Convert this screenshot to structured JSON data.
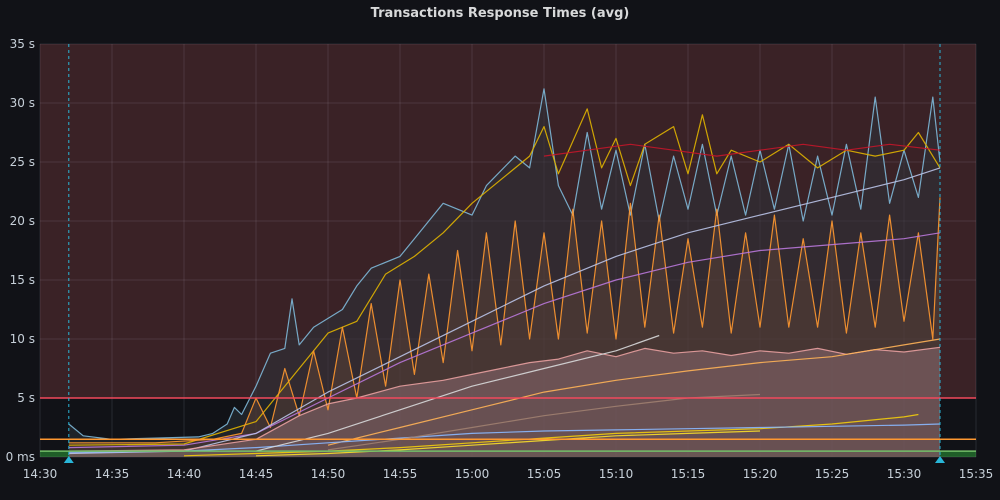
{
  "panel": {
    "title": "Transactions Response Times (avg)"
  },
  "chart_data": {
    "type": "line",
    "title": "Transactions Response Times (avg)",
    "xlabel": "",
    "ylabel": "",
    "ylim": [
      0,
      35
    ],
    "xlim": [
      "14:30",
      "15:35"
    ],
    "y_ticks": [
      "0 ms",
      "5 s",
      "10 s",
      "15 s",
      "20 s",
      "25 s",
      "30 s",
      "35 s"
    ],
    "x_ticks": [
      "14:30",
      "14:35",
      "14:40",
      "14:45",
      "14:50",
      "14:55",
      "15:00",
      "15:05",
      "15:10",
      "15:15",
      "15:20",
      "15:25",
      "15:30",
      "15:35"
    ],
    "grid": true,
    "legend": "none",
    "thresholds": [
      {
        "value": 5,
        "color": "#f2495c",
        "region": "above",
        "region_color": "#3a2226"
      },
      {
        "value": 1.5,
        "color": "#ff9830"
      },
      {
        "value": 0.5,
        "color": "#73bf69",
        "region": "below",
        "region_color": "#1f5e28"
      }
    ],
    "annotations": [
      {
        "time": "14:32",
        "color": "#29b6d8"
      },
      {
        "time": "15:32.5",
        "color": "#29b6d8"
      }
    ],
    "series": [
      {
        "color": "#7eb8d8",
        "fill": "#2c3238",
        "points": [
          [
            "14:32",
            2.8
          ],
          [
            "14:33",
            1.8
          ],
          [
            "14:35",
            1.5
          ],
          [
            "14:38",
            1.6
          ],
          [
            "14:41",
            1.7
          ],
          [
            "14:42",
            2.0
          ],
          [
            "14:43",
            2.8
          ],
          [
            "14:43.5",
            4.2
          ],
          [
            "14:44",
            3.6
          ],
          [
            "14:45",
            6.0
          ],
          [
            "14:46",
            8.8
          ],
          [
            "14:47",
            9.2
          ],
          [
            "14:47.5",
            13.4
          ],
          [
            "14:48",
            9.5
          ],
          [
            "14:49",
            11.0
          ],
          [
            "14:51",
            12.5
          ],
          [
            "14:52",
            14.5
          ],
          [
            "14:53",
            16.0
          ],
          [
            "14:55",
            17.0
          ],
          [
            "14:56",
            18.5
          ],
          [
            "14:58",
            21.5
          ],
          [
            "15:00",
            20.5
          ],
          [
            "15:01",
            23.0
          ],
          [
            "15:03",
            25.5
          ],
          [
            "15:04",
            24.5
          ],
          [
            "15:05",
            31.2
          ],
          [
            "15:06",
            23.0
          ],
          [
            "15:07",
            20.5
          ],
          [
            "15:08",
            27.5
          ],
          [
            "15:09",
            21.0
          ],
          [
            "15:10",
            26.0
          ],
          [
            "15:11",
            20.5
          ],
          [
            "15:12",
            26.5
          ],
          [
            "15:13",
            20.0
          ],
          [
            "15:14",
            25.5
          ],
          [
            "15:15",
            21.0
          ],
          [
            "15:16",
            26.5
          ],
          [
            "15:17",
            20.5
          ],
          [
            "15:18",
            25.5
          ],
          [
            "15:19",
            20.5
          ],
          [
            "15:20",
            26.0
          ],
          [
            "15:21",
            21.0
          ],
          [
            "15:22",
            26.5
          ],
          [
            "15:23",
            20.0
          ],
          [
            "15:24",
            25.5
          ],
          [
            "15:25",
            20.5
          ],
          [
            "15:26",
            26.5
          ],
          [
            "15:27",
            21.0
          ],
          [
            "15:28",
            30.5
          ],
          [
            "15:29",
            21.5
          ],
          [
            "15:30",
            26.0
          ],
          [
            "15:31",
            22.0
          ],
          [
            "15:32",
            30.5
          ],
          [
            "15:32.5",
            25.0
          ]
        ]
      },
      {
        "color": "#e0b400",
        "points": [
          [
            "14:32",
            1.0
          ],
          [
            "14:40",
            1.1
          ],
          [
            "14:45",
            3.0
          ],
          [
            "14:48",
            7.5
          ],
          [
            "14:50",
            10.5
          ],
          [
            "14:52",
            11.5
          ],
          [
            "14:54",
            15.5
          ],
          [
            "14:56",
            17.0
          ],
          [
            "14:58",
            19.0
          ],
          [
            "15:00",
            21.5
          ],
          [
            "15:02",
            23.5
          ],
          [
            "15:04",
            25.5
          ],
          [
            "15:05",
            28.0
          ],
          [
            "15:06",
            24.0
          ],
          [
            "15:08",
            29.5
          ],
          [
            "15:09",
            24.5
          ],
          [
            "15:10",
            27.0
          ],
          [
            "15:11",
            23.0
          ],
          [
            "15:12",
            26.5
          ],
          [
            "15:14",
            28.0
          ],
          [
            "15:15",
            24.0
          ],
          [
            "15:16",
            29.0
          ],
          [
            "15:17",
            24.0
          ],
          [
            "15:18",
            26.0
          ],
          [
            "15:20",
            25.0
          ],
          [
            "15:22",
            26.5
          ],
          [
            "15:24",
            24.5
          ],
          [
            "15:26",
            26.0
          ],
          [
            "15:28",
            25.5
          ],
          [
            "15:30",
            26.0
          ],
          [
            "15:31",
            27.5
          ],
          [
            "15:32.5",
            24.5
          ]
        ]
      },
      {
        "color": "#c4162a",
        "points": [
          [
            "15:05",
            25.5
          ],
          [
            "15:08",
            26.0
          ],
          [
            "15:11",
            26.5
          ],
          [
            "15:14",
            26.0
          ],
          [
            "15:17",
            25.5
          ],
          [
            "15:20",
            26.0
          ],
          [
            "15:23",
            26.5
          ],
          [
            "15:26",
            26.0
          ],
          [
            "15:29",
            26.5
          ],
          [
            "15:32.5",
            26.0
          ]
        ]
      },
      {
        "color": "#ff9830",
        "fill": "#5a4036",
        "points": [
          [
            "14:32",
            1.2
          ],
          [
            "14:38",
            1.2
          ],
          [
            "14:42",
            1.5
          ],
          [
            "14:44",
            2.0
          ],
          [
            "14:45",
            5.0
          ],
          [
            "14:46",
            2.5
          ],
          [
            "14:47",
            7.5
          ],
          [
            "14:48",
            3.5
          ],
          [
            "14:49",
            9.0
          ],
          [
            "14:50",
            4.0
          ],
          [
            "14:51",
            11.0
          ],
          [
            "14:52",
            5.0
          ],
          [
            "14:53",
            13.0
          ],
          [
            "14:54",
            6.0
          ],
          [
            "14:55",
            15.0
          ],
          [
            "14:56",
            7.0
          ],
          [
            "14:57",
            15.5
          ],
          [
            "14:58",
            8.0
          ],
          [
            "14:59",
            17.5
          ],
          [
            "15:00",
            9.0
          ],
          [
            "15:01",
            19.0
          ],
          [
            "15:02",
            9.5
          ],
          [
            "15:03",
            20.0
          ],
          [
            "15:04",
            10.0
          ],
          [
            "15:05",
            19.0
          ],
          [
            "15:06",
            10.0
          ],
          [
            "15:07",
            21.0
          ],
          [
            "15:08",
            10.5
          ],
          [
            "15:09",
            20.0
          ],
          [
            "15:10",
            10.0
          ],
          [
            "15:11",
            21.5
          ],
          [
            "15:12",
            11.0
          ],
          [
            "15:13",
            20.5
          ],
          [
            "15:14",
            10.5
          ],
          [
            "15:15",
            18.5
          ],
          [
            "15:16",
            11.0
          ],
          [
            "15:17",
            21.0
          ],
          [
            "15:18",
            10.5
          ],
          [
            "15:19",
            19.0
          ],
          [
            "15:20",
            11.0
          ],
          [
            "15:21",
            20.5
          ],
          [
            "15:22",
            11.0
          ],
          [
            "15:23",
            18.5
          ],
          [
            "15:24",
            11.0
          ],
          [
            "15:25",
            20.0
          ],
          [
            "15:26",
            10.5
          ],
          [
            "15:27",
            19.0
          ],
          [
            "15:28",
            11.0
          ],
          [
            "15:29",
            20.5
          ],
          [
            "15:30",
            11.5
          ],
          [
            "15:31",
            19.0
          ],
          [
            "15:32",
            10.0
          ],
          [
            "15:32.5",
            22.0
          ]
        ]
      },
      {
        "color": "#b877d9",
        "points": [
          [
            "14:32",
            0.8
          ],
          [
            "14:40",
            1.0
          ],
          [
            "14:45",
            2.0
          ],
          [
            "14:50",
            5.0
          ],
          [
            "14:55",
            8.0
          ],
          [
            "15:00",
            10.5
          ],
          [
            "15:05",
            13.0
          ],
          [
            "15:10",
            15.0
          ],
          [
            "15:15",
            16.5
          ],
          [
            "15:20",
            17.5
          ],
          [
            "15:25",
            18.0
          ],
          [
            "15:30",
            18.5
          ],
          [
            "15:32.5",
            19.0
          ]
        ]
      },
      {
        "color": "#b9c3e8",
        "points": [
          [
            "14:32",
            0.3
          ],
          [
            "14:40",
            0.5
          ],
          [
            "14:45",
            2.0
          ],
          [
            "14:50",
            5.5
          ],
          [
            "14:55",
            8.5
          ],
          [
            "15:00",
            11.5
          ],
          [
            "15:05",
            14.5
          ],
          [
            "15:10",
            17.0
          ],
          [
            "15:15",
            19.0
          ],
          [
            "15:20",
            20.5
          ],
          [
            "15:25",
            22.0
          ],
          [
            "15:30",
            23.5
          ],
          [
            "15:32.5",
            24.5
          ]
        ]
      },
      {
        "color": "#e8a0a0",
        "fill": "#8a6a70",
        "points": [
          [
            "14:32",
            0.5
          ],
          [
            "14:40",
            0.6
          ],
          [
            "14:45",
            1.5
          ],
          [
            "14:48",
            3.5
          ],
          [
            "14:50",
            4.5
          ],
          [
            "14:52",
            5.0
          ],
          [
            "14:55",
            6.0
          ],
          [
            "14:58",
            6.5
          ],
          [
            "15:00",
            7.0
          ],
          [
            "15:02",
            7.5
          ],
          [
            "15:04",
            8.0
          ],
          [
            "15:06",
            8.3
          ],
          [
            "15:08",
            9.0
          ],
          [
            "15:10",
            8.5
          ],
          [
            "15:12",
            9.2
          ],
          [
            "15:14",
            8.8
          ],
          [
            "15:16",
            9.0
          ],
          [
            "15:18",
            8.6
          ],
          [
            "15:20",
            9.0
          ],
          [
            "15:22",
            8.8
          ],
          [
            "15:24",
            9.2
          ],
          [
            "15:26",
            8.7
          ],
          [
            "15:28",
            9.1
          ],
          [
            "15:30",
            8.9
          ],
          [
            "15:32.5",
            9.3
          ]
        ]
      },
      {
        "color": "#ffb357",
        "points": [
          [
            "14:50",
            1.0
          ],
          [
            "14:55",
            2.5
          ],
          [
            "15:00",
            4.0
          ],
          [
            "15:05",
            5.5
          ],
          [
            "15:10",
            6.5
          ],
          [
            "15:15",
            7.3
          ],
          [
            "15:20",
            8.0
          ],
          [
            "15:25",
            8.5
          ],
          [
            "15:30",
            9.5
          ],
          [
            "15:32.5",
            10.0
          ]
        ]
      },
      {
        "color": "#f2cc0c",
        "points": [
          [
            "14:40",
            0.1
          ],
          [
            "14:45",
            0.3
          ],
          [
            "14:50",
            0.5
          ],
          [
            "14:55",
            0.8
          ],
          [
            "15:00",
            1.2
          ],
          [
            "15:05",
            1.6
          ],
          [
            "15:10",
            2.0
          ],
          [
            "15:15",
            2.2
          ],
          [
            "15:20",
            2.4
          ],
          [
            "15:25",
            2.8
          ],
          [
            "15:30",
            3.4
          ],
          [
            "15:31",
            3.6
          ]
        ]
      },
      {
        "color": "#fade2a",
        "points": [
          [
            "14:45",
            0.1
          ],
          [
            "14:50",
            0.3
          ],
          [
            "14:55",
            0.6
          ],
          [
            "15:00",
            1.0
          ],
          [
            "15:05",
            1.4
          ],
          [
            "15:10",
            1.8
          ],
          [
            "15:15",
            2.0
          ],
          [
            "15:20",
            2.2
          ]
        ]
      },
      {
        "color": "#8ab8ff",
        "points": [
          [
            "14:32",
            0.4
          ],
          [
            "14:40",
            0.5
          ],
          [
            "14:45",
            0.8
          ],
          [
            "14:50",
            1.2
          ],
          [
            "14:55",
            1.6
          ],
          [
            "15:00",
            2.0
          ],
          [
            "15:05",
            2.2
          ],
          [
            "15:10",
            2.3
          ],
          [
            "15:15",
            2.4
          ],
          [
            "15:20",
            2.5
          ],
          [
            "15:25",
            2.6
          ],
          [
            "15:30",
            2.7
          ],
          [
            "15:32.5",
            2.8
          ]
        ]
      },
      {
        "color": "#d8d9da",
        "points": [
          [
            "14:45",
            0.5
          ],
          [
            "14:50",
            2.0
          ],
          [
            "14:55",
            4.0
          ],
          [
            "15:00",
            6.0
          ],
          [
            "15:05",
            7.5
          ],
          [
            "15:10",
            9.0
          ],
          [
            "15:13",
            10.3
          ]
        ]
      },
      {
        "color": "#a08070",
        "points": [
          [
            "14:50",
            0.6
          ],
          [
            "14:55",
            1.5
          ],
          [
            "15:00",
            2.5
          ],
          [
            "15:05",
            3.5
          ],
          [
            "15:10",
            4.3
          ],
          [
            "15:15",
            5.0
          ],
          [
            "15:20",
            5.3
          ]
        ]
      }
    ]
  }
}
